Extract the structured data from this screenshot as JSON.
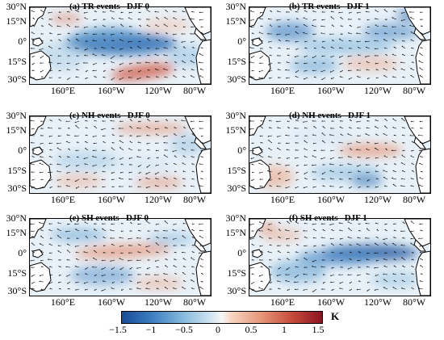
{
  "panels": [
    {
      "title": "(a) TR events   DJF 0"
    },
    {
      "title": "(b) TR events   DJF 1"
    },
    {
      "title": "(c) NH events   DJF 0"
    },
    {
      "title": "(d) NH events   DJF 1"
    },
    {
      "title": "(e) SH events   DJF 0"
    },
    {
      "title": "(f) SH events   DJF 1"
    }
  ],
  "lat_labels": [
    "30°N",
    "15°N",
    "0°",
    "15°S",
    "30°S"
  ],
  "lon_labels": [
    "160°E",
    "160°W",
    "120°W",
    "80°W"
  ],
  "colorbar": {
    "ticks": [
      "−1.5",
      "−1",
      "−0.5",
      "0",
      "0.5",
      "1",
      "1.5"
    ],
    "unit": "K",
    "colors": [
      "#1a4b96",
      "#3c7ec0",
      "#83b8dc",
      "#f7f7f7",
      "#e69478",
      "#c64b3c",
      "#8c1420"
    ]
  }
}
